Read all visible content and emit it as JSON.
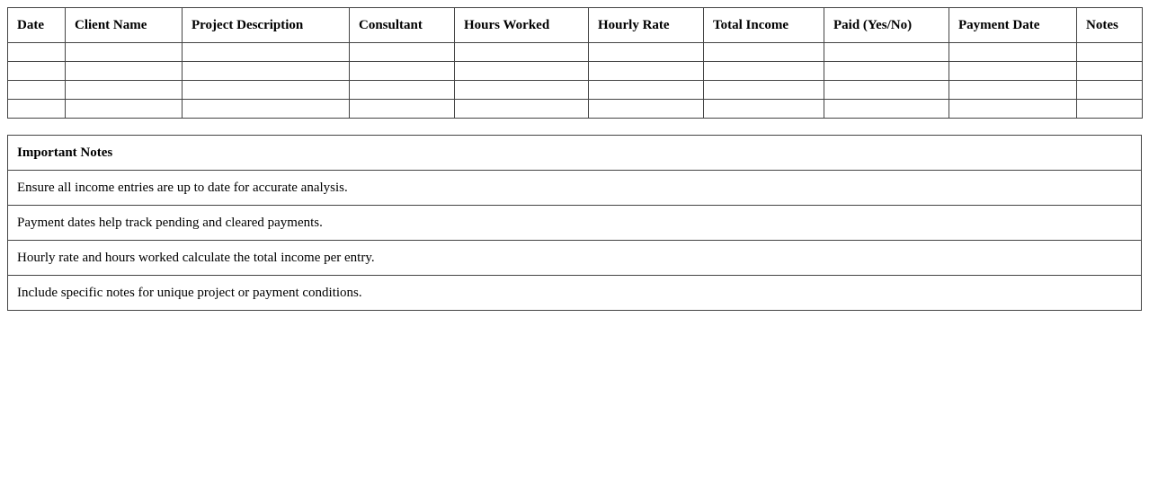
{
  "income_table": {
    "headers": [
      "Date",
      "Client Name",
      "Project Description",
      "Consultant",
      "Hours Worked",
      "Hourly Rate",
      "Total Income",
      "Paid (Yes/No)",
      "Payment Date",
      "Notes"
    ],
    "rows": [
      [
        "",
        "",
        "",
        "",
        "",
        "",
        "",
        "",
        "",
        ""
      ],
      [
        "",
        "",
        "",
        "",
        "",
        "",
        "",
        "",
        "",
        ""
      ],
      [
        "",
        "",
        "",
        "",
        "",
        "",
        "",
        "",
        "",
        ""
      ],
      [
        "",
        "",
        "",
        "",
        "",
        "",
        "",
        "",
        "",
        ""
      ]
    ]
  },
  "notes_table": {
    "title": "Important Notes",
    "items": [
      "Ensure all income entries are up to date for accurate analysis.",
      "Payment dates help track pending and cleared payments.",
      "Hourly rate and hours worked calculate the total income per entry.",
      "Include specific notes for unique project or payment conditions."
    ]
  }
}
